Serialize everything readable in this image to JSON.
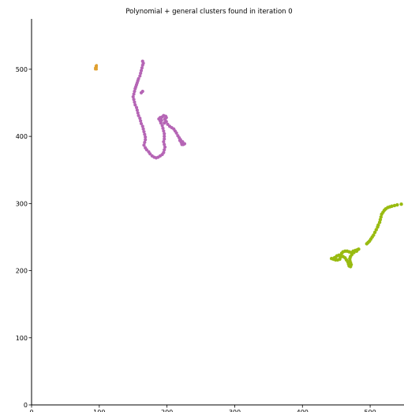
{
  "chart_data": {
    "type": "scatter",
    "title": "Polynomial + general clusters found in iteration 0",
    "xlabel": "",
    "ylabel": "",
    "xlim": [
      0,
      550
    ],
    "ylim": [
      0,
      575
    ],
    "x_ticks": [
      0,
      100,
      200,
      300,
      400,
      500
    ],
    "y_ticks": [
      0,
      100,
      200,
      300,
      400,
      500
    ],
    "grid": false,
    "series": [
      {
        "color": "#e0a030",
        "marker_size": 1.6,
        "points": [
          [
            94,
            500
          ],
          [
            95,
            502
          ],
          [
            95,
            504
          ],
          [
            96,
            506
          ],
          [
            95,
            501
          ],
          [
            96,
            503
          ],
          [
            95,
            505
          ],
          [
            94,
            502
          ],
          [
            96,
            500
          ],
          [
            96,
            505
          ]
        ]
      },
      {
        "color": "#b565b5",
        "marker_size": 2.1,
        "points": [
          [
            164,
            512
          ],
          [
            165,
            509
          ],
          [
            164,
            506
          ],
          [
            163,
            502
          ],
          [
            162,
            498
          ],
          [
            161,
            494
          ],
          [
            160,
            490
          ],
          [
            158,
            486
          ],
          [
            157,
            483
          ],
          [
            156,
            480
          ],
          [
            155,
            477
          ],
          [
            154,
            474
          ],
          [
            153,
            471
          ],
          [
            152,
            467
          ],
          [
            151,
            463
          ],
          [
            150,
            459
          ],
          [
            151,
            455
          ],
          [
            152,
            451
          ],
          [
            153,
            447
          ],
          [
            155,
            443
          ],
          [
            156,
            439
          ],
          [
            157,
            435
          ],
          [
            158,
            431
          ],
          [
            160,
            427
          ],
          [
            161,
            423
          ],
          [
            162,
            419
          ],
          [
            164,
            415
          ],
          [
            165,
            411
          ],
          [
            166,
            407
          ],
          [
            167,
            403
          ],
          [
            168,
            399
          ],
          [
            168,
            395
          ],
          [
            167,
            391
          ],
          [
            166,
            387
          ],
          [
            168,
            383
          ],
          [
            170,
            380
          ],
          [
            173,
            377
          ],
          [
            175,
            374
          ],
          [
            178,
            371
          ],
          [
            181,
            369
          ],
          [
            184,
            368
          ],
          [
            187,
            369
          ],
          [
            190,
            371
          ],
          [
            193,
            373
          ],
          [
            195,
            376
          ],
          [
            196,
            380
          ],
          [
            197,
            384
          ],
          [
            196,
            388
          ],
          [
            195,
            392
          ],
          [
            196,
            396
          ],
          [
            196,
            400
          ],
          [
            196,
            404
          ],
          [
            195,
            408
          ],
          [
            194,
            412
          ],
          [
            193,
            416
          ],
          [
            191,
            420
          ],
          [
            190,
            423
          ],
          [
            191,
            426
          ],
          [
            193,
            429
          ],
          [
            195,
            431
          ],
          [
            198,
            430
          ],
          [
            197,
            426
          ],
          [
            199,
            422
          ],
          [
            201,
            418
          ],
          [
            204,
            415
          ],
          [
            207,
            413
          ],
          [
            210,
            411
          ],
          [
            212,
            408
          ],
          [
            214,
            405
          ],
          [
            216,
            401
          ],
          [
            218,
            398
          ],
          [
            219,
            394
          ],
          [
            221,
            391
          ],
          [
            222,
            388
          ],
          [
            224,
            388
          ],
          [
            226,
            389
          ],
          [
            223,
            392
          ],
          [
            220,
            395
          ],
          [
            197,
            425
          ],
          [
            199,
            428
          ],
          [
            196,
            420
          ],
          [
            190,
            428
          ],
          [
            192,
            424
          ],
          [
            188,
            426
          ],
          [
            162,
            465
          ],
          [
            164,
            467
          ]
        ]
      },
      {
        "color": "#99bb11",
        "marker_size": 2.2,
        "points": [
          [
            443,
            218
          ],
          [
            446,
            217
          ],
          [
            449,
            216
          ],
          [
            452,
            216
          ],
          [
            455,
            217
          ],
          [
            456,
            220
          ],
          [
            457,
            223
          ],
          [
            458,
            226
          ],
          [
            460,
            228
          ],
          [
            463,
            229
          ],
          [
            466,
            229
          ],
          [
            469,
            228
          ],
          [
            472,
            227
          ],
          [
            475,
            229
          ],
          [
            478,
            230
          ],
          [
            481,
            231
          ],
          [
            483,
            232
          ],
          [
            480,
            229
          ],
          [
            476,
            227
          ],
          [
            473,
            224
          ],
          [
            471,
            221
          ],
          [
            470,
            218
          ],
          [
            470,
            215
          ],
          [
            471,
            212
          ],
          [
            472,
            209
          ],
          [
            471,
            206
          ],
          [
            469,
            207
          ],
          [
            468,
            210
          ],
          [
            467,
            213
          ],
          [
            465,
            216
          ],
          [
            463,
            219
          ],
          [
            460,
            221
          ],
          [
            457,
            222
          ],
          [
            454,
            223
          ],
          [
            451,
            222
          ],
          [
            449,
            220
          ],
          [
            447,
            219
          ],
          [
            495,
            240
          ],
          [
            497,
            242
          ],
          [
            499,
            244
          ],
          [
            501,
            247
          ],
          [
            503,
            250
          ],
          [
            505,
            253
          ],
          [
            507,
            257
          ],
          [
            509,
            261
          ],
          [
            511,
            265
          ],
          [
            512,
            268
          ],
          [
            514,
            272
          ],
          [
            515,
            276
          ],
          [
            516,
            280
          ],
          [
            517,
            284
          ],
          [
            519,
            287
          ],
          [
            521,
            290
          ],
          [
            523,
            292
          ],
          [
            526,
            294
          ],
          [
            529,
            295
          ],
          [
            532,
            296
          ],
          [
            536,
            297
          ],
          [
            540,
            298
          ],
          [
            546,
            299
          ]
        ]
      }
    ]
  }
}
